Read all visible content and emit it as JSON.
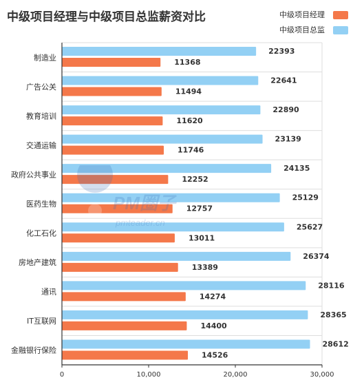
{
  "title": "中级项目经理与中级项目总监薪资对比",
  "colors": {
    "manager": "#F4784A",
    "director": "#93D0F4",
    "grid": "#dddddd",
    "axis": "#333333",
    "text": "#333333"
  },
  "legend": [
    {
      "label": "中级项目经理",
      "color": "#F4784A"
    },
    {
      "label": "中级项目总监",
      "color": "#93D0F4"
    }
  ],
  "watermark": {
    "brand": "PM圈子",
    "site": "pmteader.cn"
  },
  "chart_data": {
    "type": "bar",
    "orientation": "horizontal",
    "title": "中级项目经理与中级项目总监薪资对比",
    "categories": [
      "制造业",
      "广告公关",
      "教育培训",
      "交通运输",
      "政府公共事业",
      "医药生物",
      "化工石化",
      "房地产建筑",
      "通讯",
      "IT互联网",
      "金融银行保险"
    ],
    "series": [
      {
        "name": "中级项目总监",
        "values": [
          22393,
          22641,
          22890,
          23139,
          24135,
          25129,
          25627,
          26374,
          28116,
          28365,
          28612
        ]
      },
      {
        "name": "中级项目经理",
        "values": [
          11368,
          11494,
          11620,
          11746,
          12252,
          12757,
          13011,
          13389,
          14274,
          14400,
          14526
        ]
      }
    ],
    "xlim": [
      0,
      30000
    ],
    "xticks": [
      "0",
      "10,000",
      "20,000",
      "30,000"
    ],
    "xtick_values": [
      0,
      10000,
      20000,
      30000
    ],
    "legend_position": "top-right",
    "grid": true
  }
}
